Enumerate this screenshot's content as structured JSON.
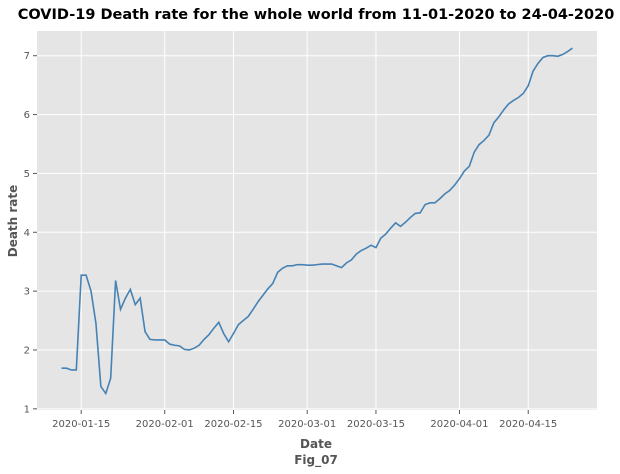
{
  "chart_data": {
    "type": "line",
    "title": "COVID-19 Death rate for the whole world from 11-01-2020 to 24-04-2020",
    "xlabel": "Date",
    "caption": "Fig_07",
    "ylabel": "Death rate",
    "x_ticks": [
      "2020-01-15",
      "2020-02-01",
      "2020-02-15",
      "2020-03-01",
      "2020-03-15",
      "2020-04-01",
      "2020-04-15"
    ],
    "y_ticks": [
      "1",
      "2",
      "3",
      "4",
      "5",
      "6",
      "7"
    ],
    "xlim": [
      "2020-01-06",
      "2020-04-29"
    ],
    "ylim": [
      0.98,
      7.42
    ],
    "grid": true,
    "line_color": "#4682b4",
    "background_color": "#e5e5e5",
    "series": [
      {
        "x": [
          "2020-01-11",
          "2020-01-12",
          "2020-01-13",
          "2020-01-14",
          "2020-01-15",
          "2020-01-16",
          "2020-01-17",
          "2020-01-18",
          "2020-01-19",
          "2020-01-20",
          "2020-01-21",
          "2020-01-22",
          "2020-01-23",
          "2020-01-24",
          "2020-01-25",
          "2020-01-26",
          "2020-01-27",
          "2020-01-28",
          "2020-01-29",
          "2020-01-30",
          "2020-01-31",
          "2020-02-01",
          "2020-02-02",
          "2020-02-03",
          "2020-02-04",
          "2020-02-05",
          "2020-02-06",
          "2020-02-07",
          "2020-02-08",
          "2020-02-09",
          "2020-02-10",
          "2020-02-11",
          "2020-02-12",
          "2020-02-13",
          "2020-02-14",
          "2020-02-15",
          "2020-02-16",
          "2020-02-17",
          "2020-02-18",
          "2020-02-19",
          "2020-02-20",
          "2020-02-21",
          "2020-02-22",
          "2020-02-23",
          "2020-02-24",
          "2020-02-25",
          "2020-02-26",
          "2020-02-27",
          "2020-02-28",
          "2020-02-29",
          "2020-03-01",
          "2020-03-02",
          "2020-03-03",
          "2020-03-04",
          "2020-03-05",
          "2020-03-06",
          "2020-03-07",
          "2020-03-08",
          "2020-03-09",
          "2020-03-10",
          "2020-03-11",
          "2020-03-12",
          "2020-03-13",
          "2020-03-14",
          "2020-03-15",
          "2020-03-16",
          "2020-03-17",
          "2020-03-18",
          "2020-03-19",
          "2020-03-20",
          "2020-03-21",
          "2020-03-22",
          "2020-03-23",
          "2020-03-24",
          "2020-03-25",
          "2020-03-26",
          "2020-03-27",
          "2020-03-28",
          "2020-03-29",
          "2020-03-30",
          "2020-03-31",
          "2020-04-01",
          "2020-04-02",
          "2020-04-03",
          "2020-04-04",
          "2020-04-05",
          "2020-04-06",
          "2020-04-07",
          "2020-04-08",
          "2020-04-09",
          "2020-04-10",
          "2020-04-11",
          "2020-04-12",
          "2020-04-13",
          "2020-04-14",
          "2020-04-15",
          "2020-04-16",
          "2020-04-17",
          "2020-04-18",
          "2020-04-19",
          "2020-04-20",
          "2020-04-21",
          "2020-04-22",
          "2020-04-23",
          "2020-04-24"
        ],
        "y": [
          1.69,
          1.69,
          1.66,
          1.66,
          3.27,
          3.27,
          3.0,
          2.45,
          1.38,
          1.26,
          1.52,
          3.18,
          2.69,
          2.88,
          3.03,
          2.77,
          2.88,
          2.31,
          2.18,
          2.17,
          2.17,
          2.17,
          2.1,
          2.08,
          2.07,
          2.01,
          2.0,
          2.03,
          2.08,
          2.18,
          2.26,
          2.37,
          2.47,
          2.28,
          2.14,
          2.28,
          2.43,
          2.5,
          2.57,
          2.69,
          2.82,
          2.93,
          3.04,
          3.13,
          3.32,
          3.39,
          3.43,
          3.43,
          3.45,
          3.45,
          3.44,
          3.44,
          3.45,
          3.46,
          3.46,
          3.46,
          3.43,
          3.4,
          3.48,
          3.53,
          3.63,
          3.69,
          3.73,
          3.78,
          3.74,
          3.9,
          3.97,
          4.07,
          4.16,
          4.1,
          4.17,
          4.25,
          4.32,
          4.33,
          4.47,
          4.5,
          4.5,
          4.57,
          4.65,
          4.71,
          4.8,
          4.91,
          5.04,
          5.12,
          5.36,
          5.49,
          5.56,
          5.65,
          5.86,
          5.96,
          6.08,
          6.18,
          6.24,
          6.29,
          6.36,
          6.49,
          6.74,
          6.87,
          6.97,
          7.0,
          7.0,
          6.99,
          7.02,
          7.07,
          7.13
        ]
      }
    ]
  }
}
